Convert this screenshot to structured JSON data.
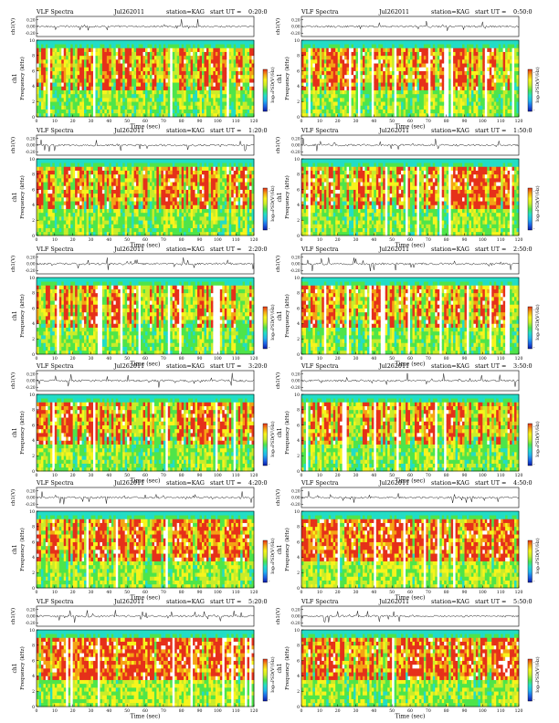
{
  "page": {
    "header_word": "VLF Spectra",
    "station_label": "station=KAG",
    "start_label": "start UT =",
    "waveform_ylabel": "ch1(V)",
    "spectrum_ylabel": "Frequency (kHz)",
    "spectrum_channel": "ch1",
    "xlabel": "Time (sec)",
    "colorbar_label": "log₁₀PSD(V²/Hz)"
  },
  "colors": {
    "colormap": [
      "#0a1aa8",
      "#1d64e6",
      "#21b4ee",
      "#22ddc6",
      "#4ee54a",
      "#c8ec2a",
      "#f7f41c",
      "#f5a314",
      "#e6301a",
      "#ffffff"
    ],
    "band_top": "#2fd6c6",
    "waveform": "#000000"
  },
  "chart_data": [
    {
      "type": "heatmap",
      "date_label": "Jul262011",
      "start_time": "0:20:0",
      "xticks": [
        "0",
        "10",
        "20",
        "30",
        "40",
        "50",
        "60",
        "70",
        "80",
        "90",
        "100",
        "110",
        "120"
      ],
      "xlim": [
        0,
        120
      ],
      "yticks": [
        "0",
        "2",
        "4",
        "6",
        "8",
        "10"
      ],
      "ylim": [
        0,
        10
      ],
      "waveform_yticks": [
        "-0.20",
        "0.00",
        "0.20"
      ],
      "waveform_ylim": [
        -0.3,
        0.3
      ],
      "colorbar_ticks": [
        "-",
        "-"
      ],
      "activity": 0.55
    },
    {
      "type": "heatmap",
      "date_label": "Jul262011",
      "start_time": "0:50:0",
      "xticks": [
        "0",
        "10",
        "20",
        "30",
        "40",
        "50",
        "60",
        "70",
        "80",
        "90",
        "100",
        "110",
        "120"
      ],
      "xlim": [
        0,
        120
      ],
      "yticks": [
        "0",
        "2",
        "4",
        "6",
        "8",
        "10"
      ],
      "ylim": [
        0,
        10
      ],
      "waveform_yticks": [
        "-0.20",
        "0.00",
        "0.20"
      ],
      "waveform_ylim": [
        -0.3,
        0.3
      ],
      "colorbar_ticks": [
        "-",
        "-"
      ],
      "activity": 0.55
    },
    {
      "type": "heatmap",
      "date_label": "Jul262011",
      "start_time": "1:20:0",
      "xticks": [
        "0",
        "10",
        "20",
        "30",
        "40",
        "50",
        "60",
        "70",
        "80",
        "90",
        "100",
        "110",
        "120"
      ],
      "xlim": [
        0,
        120
      ],
      "yticks": [
        "0",
        "2",
        "4",
        "6",
        "8",
        "10"
      ],
      "ylim": [
        0,
        10
      ],
      "waveform_yticks": [
        "-0.20",
        "0.00",
        "0.20"
      ],
      "waveform_ylim": [
        -0.3,
        0.3
      ],
      "colorbar_ticks": [
        "-",
        "-"
      ],
      "activity": 0.6
    },
    {
      "type": "heatmap",
      "date_label": "Jul262011",
      "start_time": "1:50:0",
      "xticks": [
        "0",
        "10",
        "20",
        "30",
        "40",
        "50",
        "60",
        "70",
        "80",
        "90",
        "100",
        "110",
        "120"
      ],
      "xlim": [
        0,
        120
      ],
      "yticks": [
        "0",
        "2",
        "4",
        "6",
        "8",
        "10"
      ],
      "ylim": [
        0,
        10
      ],
      "waveform_yticks": [
        "-0.20",
        "0.00",
        "0.20"
      ],
      "waveform_ylim": [
        -0.3,
        0.3
      ],
      "colorbar_ticks": [
        "-",
        "-"
      ],
      "activity": 0.6
    },
    {
      "type": "heatmap",
      "date_label": "Jul262011",
      "start_time": "2:20:0",
      "xticks": [
        "0",
        "10",
        "20",
        "30",
        "40",
        "50",
        "60",
        "70",
        "80",
        "90",
        "100",
        "110",
        "120"
      ],
      "xlim": [
        0,
        120
      ],
      "yticks": [
        "0",
        "2",
        "4",
        "6",
        "8",
        "10"
      ],
      "ylim": [
        0,
        10
      ],
      "waveform_yticks": [
        "-0.20",
        "0.00",
        "0.20"
      ],
      "waveform_ylim": [
        -0.3,
        0.3
      ],
      "colorbar_ticks": [
        "-",
        "-"
      ],
      "activity": 0.55
    },
    {
      "type": "heatmap",
      "date_label": "Jul262011",
      "start_time": "2:50:0",
      "xticks": [
        "0",
        "10",
        "20",
        "30",
        "40",
        "50",
        "60",
        "70",
        "80",
        "90",
        "100",
        "110",
        "120"
      ],
      "xlim": [
        0,
        120
      ],
      "yticks": [
        "0",
        "2",
        "4",
        "6",
        "8",
        "10"
      ],
      "ylim": [
        0,
        10
      ],
      "waveform_yticks": [
        "-0.20",
        "0.00",
        "0.20"
      ],
      "waveform_ylim": [
        -0.3,
        0.3
      ],
      "colorbar_ticks": [
        "-",
        "-"
      ],
      "activity": 0.55
    },
    {
      "type": "heatmap",
      "date_label": "Jul262011",
      "start_time": "3:20:0",
      "xticks": [
        "0",
        "10",
        "20",
        "30",
        "40",
        "50",
        "60",
        "70",
        "80",
        "90",
        "100",
        "110",
        "120"
      ],
      "xlim": [
        0,
        120
      ],
      "yticks": [
        "0",
        "2",
        "4",
        "6",
        "8",
        "10"
      ],
      "ylim": [
        0,
        10
      ],
      "waveform_yticks": [
        "-0.20",
        "0.00",
        "0.20"
      ],
      "waveform_ylim": [
        -0.3,
        0.3
      ],
      "colorbar_ticks": [
        "-",
        "-"
      ],
      "activity": 0.6
    },
    {
      "type": "heatmap",
      "date_label": "Jul262011",
      "start_time": "3:50:0",
      "xticks": [
        "0",
        "10",
        "20",
        "30",
        "40",
        "50",
        "60",
        "70",
        "80",
        "90",
        "100",
        "110",
        "120"
      ],
      "xlim": [
        0,
        120
      ],
      "yticks": [
        "0",
        "2",
        "4",
        "6",
        "8",
        "10"
      ],
      "ylim": [
        0,
        10
      ],
      "waveform_yticks": [
        "-0.20",
        "0.00",
        "0.20"
      ],
      "waveform_ylim": [
        -0.3,
        0.3
      ],
      "colorbar_ticks": [
        "-",
        "-"
      ],
      "activity": 0.6
    },
    {
      "type": "heatmap",
      "date_label": "Jul262011",
      "start_time": "4:20:0",
      "xticks": [
        "0",
        "10",
        "20",
        "30",
        "40",
        "50",
        "60",
        "70",
        "80",
        "90",
        "100",
        "110",
        "120"
      ],
      "xlim": [
        0,
        120
      ],
      "yticks": [
        "0",
        "2",
        "4",
        "6",
        "8",
        "10"
      ],
      "ylim": [
        0,
        10
      ],
      "waveform_yticks": [
        "-0.20",
        "0.00",
        "0.20"
      ],
      "waveform_ylim": [
        -0.3,
        0.3
      ],
      "colorbar_ticks": [
        "-",
        "-"
      ],
      "activity": 0.75
    },
    {
      "type": "heatmap",
      "date_label": "Jul262011",
      "start_time": "4:50:0",
      "xticks": [
        "0",
        "10",
        "20",
        "30",
        "40",
        "50",
        "60",
        "70",
        "80",
        "90",
        "100",
        "110",
        "120"
      ],
      "xlim": [
        0,
        120
      ],
      "yticks": [
        "0",
        "2",
        "4",
        "6",
        "8",
        "10"
      ],
      "ylim": [
        0,
        10
      ],
      "waveform_yticks": [
        "-0.20",
        "0.00",
        "0.20"
      ],
      "waveform_ylim": [
        -0.3,
        0.3
      ],
      "colorbar_ticks": [
        "-",
        "-"
      ],
      "activity": 0.8
    },
    {
      "type": "heatmap",
      "date_label": "Jul262011",
      "start_time": "5:20:0",
      "xticks": [
        "0",
        "10",
        "20",
        "30",
        "40",
        "50",
        "60",
        "70",
        "80",
        "90",
        "100",
        "110",
        "120"
      ],
      "xlim": [
        0,
        120
      ],
      "yticks": [
        "0",
        "2",
        "4",
        "6",
        "8",
        "10"
      ],
      "ylim": [
        0,
        10
      ],
      "waveform_yticks": [
        "-0.20",
        "0.00",
        "0.20"
      ],
      "waveform_ylim": [
        -0.3,
        0.3
      ],
      "colorbar_ticks": [
        "-",
        "-"
      ],
      "activity": 0.85
    },
    {
      "type": "heatmap",
      "date_label": "Jul262011",
      "start_time": "5:50:0",
      "xticks": [
        "0",
        "10",
        "20",
        "30",
        "40",
        "50",
        "60",
        "70",
        "80",
        "90",
        "100",
        "110",
        "120"
      ],
      "xlim": [
        0,
        120
      ],
      "yticks": [
        "0",
        "2",
        "4",
        "6",
        "8",
        "10"
      ],
      "ylim": [
        0,
        10
      ],
      "waveform_yticks": [
        "-0.20",
        "0.00",
        "0.20"
      ],
      "waveform_ylim": [
        -0.3,
        0.3
      ],
      "colorbar_ticks": [
        "-",
        "-"
      ],
      "activity": 0.85
    }
  ]
}
